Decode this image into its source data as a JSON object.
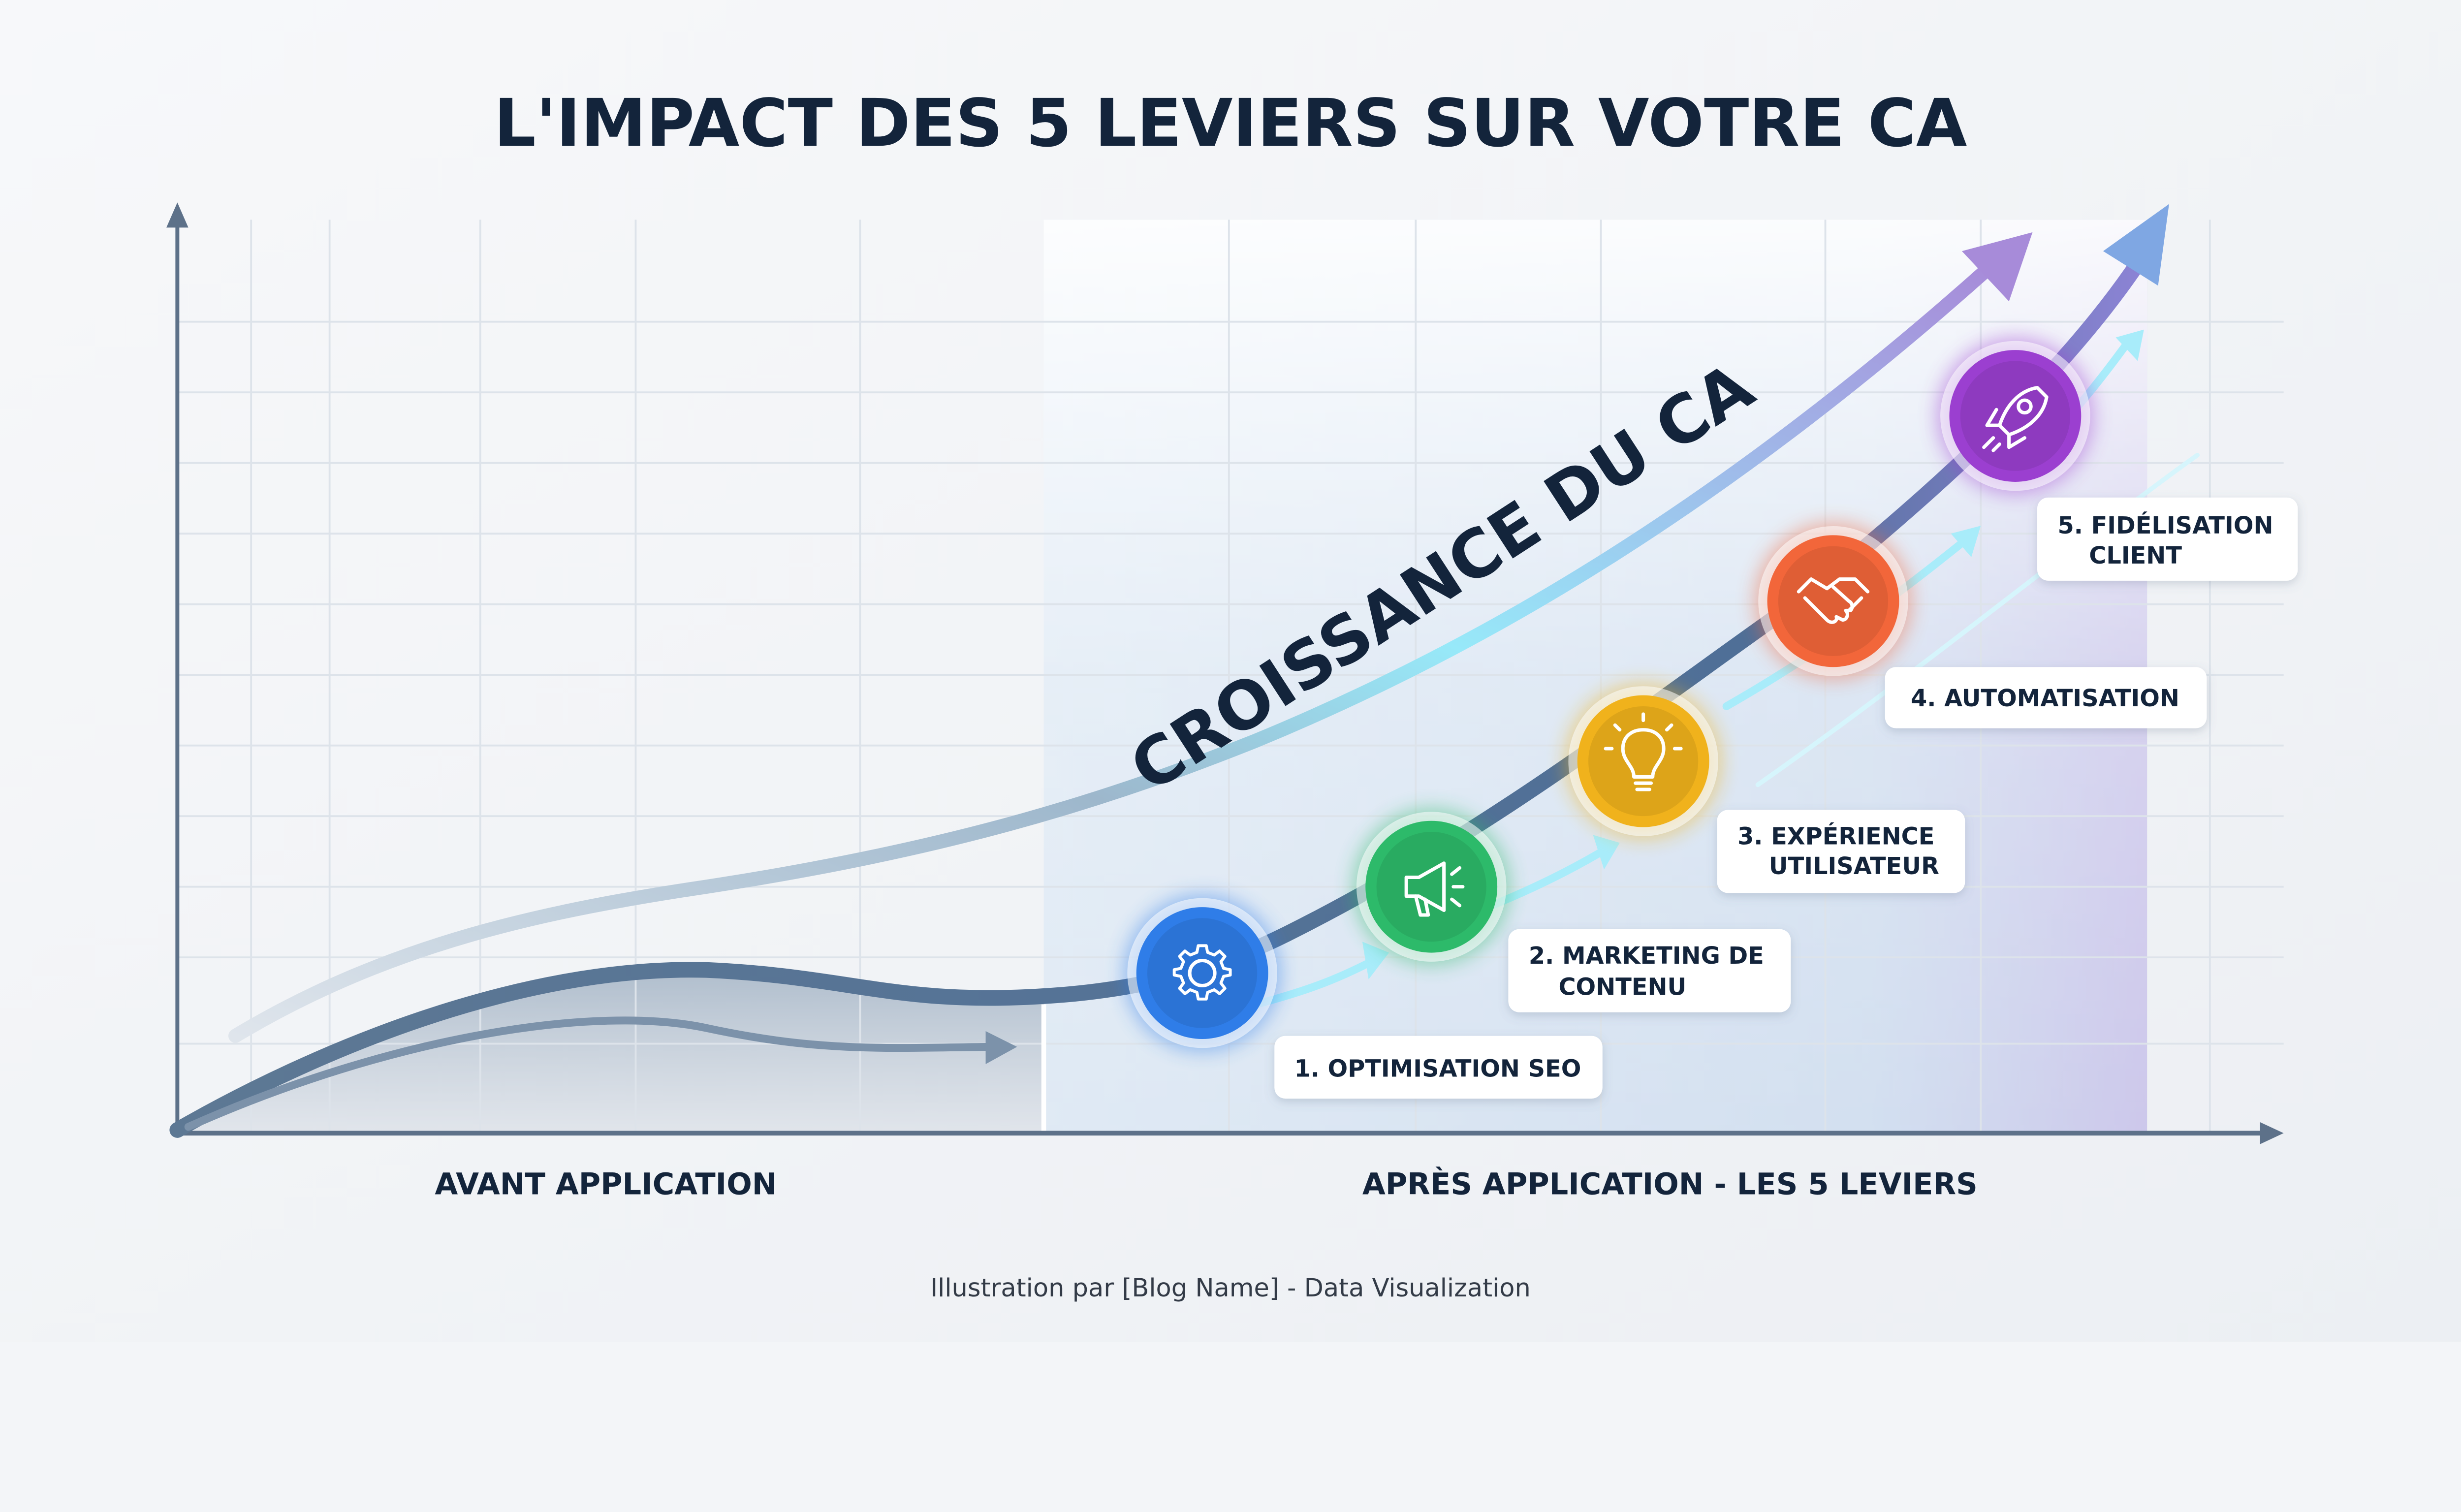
{
  "title": "L'IMPACT DES 5 LEVIERS SUR VOTRE CA",
  "curve_label": "CROISSANCE DU CA",
  "axis_labels": {
    "before": "AVANT APPLICATION",
    "after": "APRÈS APPLICATION - LES 5 LEVIERS"
  },
  "levers": [
    {
      "lines": [
        "1. OPTIMISATION SEO"
      ],
      "icon": "gear-icon",
      "color": "#2f7de8"
    },
    {
      "lines": [
        "2. MARKETING DE",
        "CONTENU"
      ],
      "icon": "megaphone-icon",
      "color": "#2dba6a"
    },
    {
      "lines": [
        "3. EXPÉRIENCE",
        "UTILISATEUR"
      ],
      "icon": "lightbulb-icon",
      "color": "#f0b21c"
    },
    {
      "lines": [
        "4. AUTOMATISATION"
      ],
      "icon": "handshake-icon",
      "color": "#f2663a"
    },
    {
      "lines": [
        "5. FIDÉLISATION",
        "CLIENT"
      ],
      "icon": "rocket-icon",
      "color": "#9b3fd0"
    }
  ],
  "footer": "Illustration par [Blog Name] - Data Visualization",
  "colors": {
    "text": "#13243b",
    "curve": "#5b7895",
    "accent_cyan": "#8ee6f7",
    "accent_purple": "#a58ad9"
  }
}
